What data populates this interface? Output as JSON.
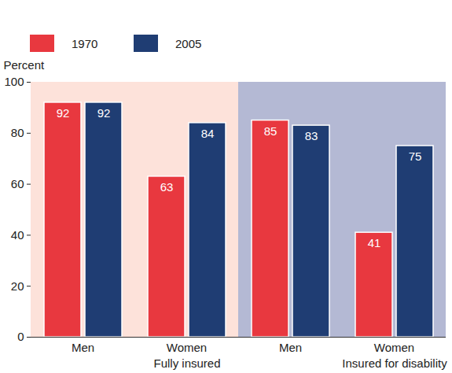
{
  "chart_data": {
    "type": "bar",
    "categories": [
      "Men",
      "Women",
      "Men",
      "Women"
    ],
    "category_groups": [
      "Fully insured",
      "Fully insured",
      "Insured for disability",
      "Insured for disability"
    ],
    "series": [
      {
        "name": "1970",
        "color": "#e8383f",
        "values": [
          92,
          63,
          85,
          41
        ]
      },
      {
        "name": "2005",
        "color": "#1f3d73",
        "values": [
          92,
          84,
          83,
          75
        ]
      }
    ],
    "ylabel": "Percent",
    "ylim": [
      0,
      100
    ],
    "yticks": [
      0,
      20,
      40,
      60,
      80,
      100
    ],
    "grid": false,
    "data_labels": true,
    "legend": "top-left"
  }
}
